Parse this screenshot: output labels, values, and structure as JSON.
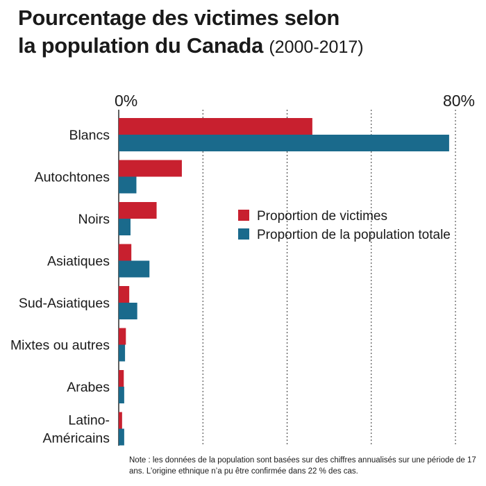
{
  "title_line1": "Pourcentage des victimes selon",
  "title_line2": "la population du Canada",
  "title_years": "(2000-2017)",
  "note": "Note : les données de la population sont basées sur des chiffres annualisés sur une période de 17 ans. L’origine ethnique n’a pu être confirmée dans 22 % des cas.",
  "colors": {
    "victims": "#c8202f",
    "population": "#1a6a8c",
    "text": "#1a1a1a",
    "grid": "#333333"
  },
  "chart_data": {
    "type": "bar",
    "orientation": "horizontal",
    "categories": [
      [
        "Blancs"
      ],
      [
        "Autochtones"
      ],
      [
        "Noirs"
      ],
      [
        "Asiatiques"
      ],
      [
        "Sud-Asiatiques"
      ],
      [
        "Mixtes ou autres"
      ],
      [
        "Arabes"
      ],
      [
        "Latino-",
        "Américains"
      ]
    ],
    "series": [
      {
        "name": "Proportion de victimes",
        "color": "#c8202f",
        "values": [
          46.0,
          15.0,
          9.0,
          3.0,
          2.5,
          1.7,
          1.2,
          0.8
        ]
      },
      {
        "name": "Proportion de la population totale",
        "color": "#1a6a8c",
        "values": [
          78.5,
          4.2,
          2.8,
          7.3,
          4.4,
          1.5,
          1.3,
          1.3
        ]
      }
    ],
    "xlim": [
      0,
      80
    ],
    "tick_labels": [
      {
        "value": 0,
        "label": "0%"
      },
      {
        "value": 80,
        "label": "80%"
      }
    ],
    "gridlines": [
      20,
      40,
      60,
      80
    ],
    "legend": "center-right"
  }
}
